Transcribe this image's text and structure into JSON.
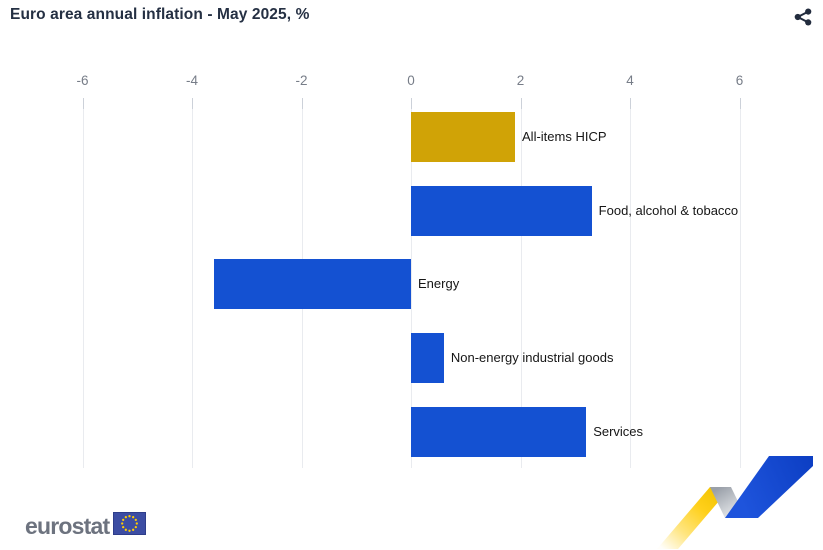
{
  "header": {
    "title": "Euro area annual inflation - May 2025, %"
  },
  "chart_data": {
    "type": "bar",
    "orientation": "horizontal",
    "title": "Euro area annual inflation - May 2025, %",
    "xlabel": "",
    "ylabel": "",
    "value_unit": "%",
    "categories": [
      "All-items HICP",
      "Food, alcohol & tobacco",
      "Energy",
      "Non-energy industrial goods",
      "Services"
    ],
    "values": [
      1.9,
      3.3,
      -3.6,
      0.6,
      3.2
    ],
    "bar_colors": [
      "#d0a306",
      "#1451d2",
      "#1451d2",
      "#1451d2",
      "#1451d2"
    ],
    "x_ticks": [
      "-6",
      "-4",
      "-2",
      "0",
      "2",
      "4",
      "6"
    ],
    "x_tick_values": [
      -6,
      -4,
      -2,
      0,
      2,
      4,
      6
    ],
    "xlim": [
      -7,
      7
    ],
    "grid": true,
    "legend": "none"
  },
  "footer": {
    "brand": "eurostat"
  },
  "icons": {
    "share": "share-icon",
    "flag": "eu-flag-icon",
    "zigzag": "eurostat-zigzag-decoration"
  },
  "colors": {
    "highlight_bar": "#d0a306",
    "default_bar": "#1451d2",
    "title_text": "#253043",
    "tick_label": "#777d88",
    "gridline": "#e9ebef",
    "bar_label": "#161616",
    "brand_text": "#6d737f",
    "eu_flag_blue": "#3c4da3",
    "eu_flag_stars": "#ffcc00",
    "deco_yellow": "#f2c300",
    "deco_blue": "#0d3fc4"
  }
}
